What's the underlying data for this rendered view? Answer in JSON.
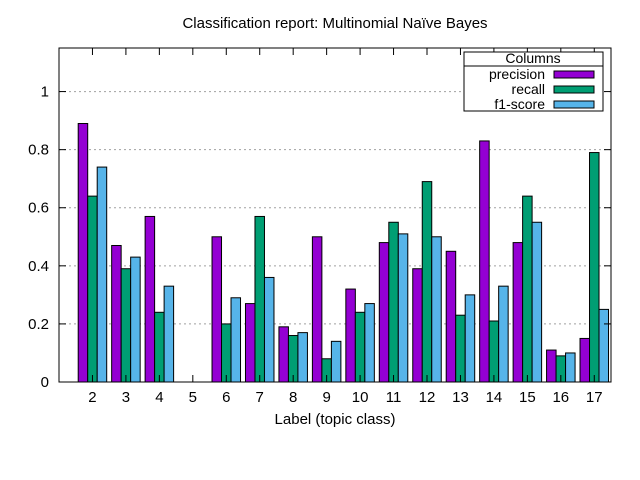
{
  "chart_data": {
    "type": "bar",
    "title": "Classification report: Multinomial Naïve Bayes",
    "xlabel": "Label (topic class)",
    "ylabel": "",
    "categories": [
      "2",
      "3",
      "4",
      "5",
      "6",
      "7",
      "8",
      "9",
      "10",
      "11",
      "12",
      "13",
      "14",
      "15",
      "16",
      "17"
    ],
    "ylim": [
      0,
      1.15
    ],
    "yticks": [
      0,
      0.2,
      0.4,
      0.6,
      0.8,
      1
    ],
    "ytick_labels": [
      "0",
      "0.2",
      "0.4",
      "0.6",
      "0.8",
      "1"
    ],
    "grid": true,
    "legend": {
      "title": "Columns",
      "placement": "top-right"
    },
    "series": [
      {
        "name": "precision",
        "color": "#9400d3",
        "values": [
          0.89,
          0.47,
          0.57,
          0,
          0.5,
          0.27,
          0.19,
          0.5,
          0.32,
          0.48,
          0.39,
          0.45,
          0.83,
          0.48,
          0.11,
          0.15
        ]
      },
      {
        "name": "recall",
        "color": "#009e73",
        "values": [
          0.64,
          0.39,
          0.24,
          0,
          0.2,
          0.57,
          0.16,
          0.08,
          0.24,
          0.55,
          0.69,
          0.23,
          0.21,
          0.64,
          0.09,
          0.79
        ]
      },
      {
        "name": "f1-score",
        "color": "#56b4e9",
        "values": [
          0.74,
          0.43,
          0.33,
          0,
          0.29,
          0.36,
          0.17,
          0.14,
          0.27,
          0.51,
          0.5,
          0.3,
          0.33,
          0.55,
          0.1,
          0.25
        ]
      }
    ]
  }
}
